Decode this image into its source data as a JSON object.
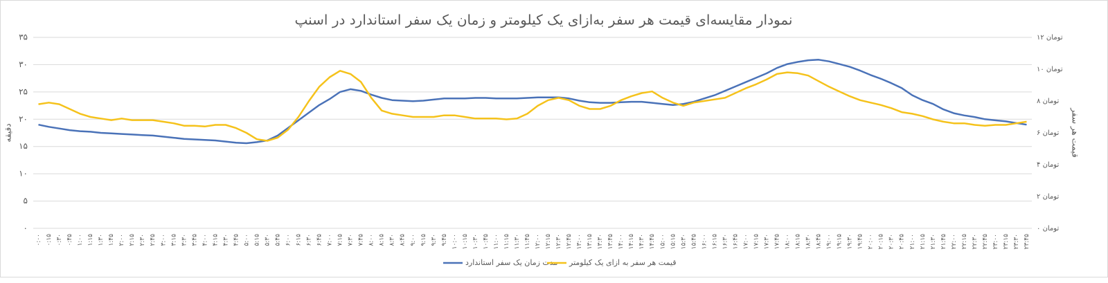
{
  "chart_data": {
    "type": "line",
    "title": "نمودار مقایسه‌ای قیمت هر سفر به‌ازای یک کیلومتر و زمان یک سفر استاندارد در اسنپ",
    "ylabel": "دقیقه",
    "y2label": "قیمت هر سفر",
    "categories": [
      "۰:۰۰",
      "۰:۱۵",
      "۰:۳۰",
      "۰:۴۵",
      "۱:۰۰",
      "۱:۱۵",
      "۱:۳۰",
      "۱:۴۵",
      "۲:۰۰",
      "۲:۱۵",
      "۲:۳۰",
      "۲:۴۵",
      "۳:۰۰",
      "۳:۱۵",
      "۳:۳۰",
      "۳:۴۵",
      "۴:۰۰",
      "۴:۱۵",
      "۴:۳۰",
      "۴:۴۵",
      "۵:۰۰",
      "۵:۱۵",
      "۵:۳۰",
      "۵:۴۵",
      "۶:۰۰",
      "۶:۱۵",
      "۶:۳۰",
      "۶:۴۵",
      "۷:۰۰",
      "۷:۱۵",
      "۷:۳۰",
      "۷:۴۵",
      "۸:۰۰",
      "۸:۱۵",
      "۸:۳۰",
      "۸:۴۵",
      "۹:۰۰",
      "۹:۱۵",
      "۹:۳۰",
      "۹:۴۵",
      "۱۰:۰۰",
      "۱۰:۱۵",
      "۱۰:۳۰",
      "۱۰:۴۵",
      "۱۱:۰۰",
      "۱۱:۱۵",
      "۱۱:۳۰",
      "۱۱:۴۵",
      "۱۲:۰۰",
      "۱۲:۱۵",
      "۱۲:۳۰",
      "۱۲:۴۵",
      "۱۳:۰۰",
      "۱۳:۱۵",
      "۱۳:۳۰",
      "۱۳:۴۵",
      "۱۴:۰۰",
      "۱۴:۱۵",
      "۱۴:۳۰",
      "۱۴:۴۵",
      "۱۵:۰۰",
      "۱۵:۱۵",
      "۱۵:۳۰",
      "۱۵:۴۵",
      "۱۶:۰۰",
      "۱۶:۱۵",
      "۱۶:۳۰",
      "۱۶:۴۵",
      "۱۷:۰۰",
      "۱۷:۱۵",
      "۱۷:۳۰",
      "۱۷:۴۵",
      "۱۸:۰۰",
      "۱۸:۱۵",
      "۱۸:۳۰",
      "۱۸:۴۵",
      "۱۹:۰۰",
      "۱۹:۱۵",
      "۱۹:۳۰",
      "۱۹:۴۵",
      "۲۰:۰۰",
      "۲۰:۱۵",
      "۲۰:۳۰",
      "۲۰:۴۵",
      "۲۱:۰۰",
      "۲۱:۱۵",
      "۲۱:۳۰",
      "۲۱:۴۵",
      "۲۲:۰۰",
      "۲۲:۱۵",
      "۲۲:۳۰",
      "۲۲:۴۵",
      "۲۳:۰۰",
      "۲۳:۱۵",
      "۲۳:۳۰",
      "۲۳:۴۵"
    ],
    "series": [
      {
        "name": "مدت زمان یک سفر استاندارد",
        "color": "#4a72b8",
        "values": [
          19.0,
          18.6,
          18.3,
          18.0,
          17.8,
          17.7,
          17.5,
          17.4,
          17.3,
          17.2,
          17.1,
          17.0,
          16.8,
          16.6,
          16.4,
          16.3,
          16.2,
          16.1,
          15.9,
          15.7,
          15.6,
          15.8,
          16.1,
          17.0,
          18.4,
          19.8,
          21.2,
          22.6,
          23.7,
          25.0,
          25.5,
          25.2,
          24.5,
          23.9,
          23.5,
          23.4,
          23.3,
          23.4,
          23.6,
          23.8,
          23.8,
          23.8,
          23.9,
          23.9,
          23.8,
          23.8,
          23.8,
          23.9,
          24.0,
          24.0,
          24.0,
          23.8,
          23.4,
          23.1,
          23.0,
          23.0,
          23.1,
          23.2,
          23.2,
          23.0,
          22.8,
          22.6,
          22.8,
          23.2,
          23.8,
          24.4,
          25.2,
          26.0,
          26.8,
          27.6,
          28.4,
          29.4,
          30.1,
          30.5,
          30.8,
          30.9,
          30.6,
          30.1,
          29.6,
          28.9,
          28.1,
          27.4,
          26.6,
          25.7,
          24.4,
          23.5,
          22.8,
          21.8,
          21.1,
          20.7,
          20.4,
          20.0,
          19.8,
          19.6,
          19.3,
          19.0
        ]
      },
      {
        "name": "قیمت هر سفر به ازای یک کیلومتر",
        "color": "#f5c21b",
        "axis": "y2",
        "values": [
          7.8,
          7.9,
          7.8,
          7.5,
          7.2,
          7.0,
          6.9,
          6.8,
          6.9,
          6.8,
          6.8,
          6.8,
          6.7,
          6.6,
          6.45,
          6.45,
          6.4,
          6.5,
          6.5,
          6.3,
          6.0,
          5.6,
          5.5,
          5.7,
          6.2,
          7.0,
          8.0,
          8.9,
          9.5,
          9.9,
          9.7,
          9.2,
          8.2,
          7.4,
          7.2,
          7.1,
          7.0,
          7.0,
          7.0,
          7.1,
          7.1,
          7.0,
          6.9,
          6.9,
          6.9,
          6.85,
          6.9,
          7.2,
          7.7,
          8.05,
          8.2,
          8.05,
          7.7,
          7.5,
          7.5,
          7.7,
          8.05,
          8.3,
          8.5,
          8.6,
          8.2,
          7.9,
          7.7,
          7.9,
          8.0,
          8.1,
          8.2,
          8.5,
          8.8,
          9.05,
          9.35,
          9.7,
          9.8,
          9.75,
          9.6,
          9.25,
          8.9,
          8.6,
          8.3,
          8.05,
          7.9,
          7.75,
          7.55,
          7.3,
          7.2,
          7.05,
          6.85,
          6.7,
          6.6,
          6.6,
          6.5,
          6.45,
          6.5,
          6.5,
          6.6,
          6.7
        ]
      }
    ],
    "ylim": [
      0,
      35
    ],
    "yticks": [
      {
        "value": 0,
        "label": "۰"
      },
      {
        "value": 5,
        "label": "۵"
      },
      {
        "value": 10,
        "label": "۱۰"
      },
      {
        "value": 15,
        "label": "۱۵"
      },
      {
        "value": 20,
        "label": "۲۰"
      },
      {
        "value": 25,
        "label": "۲۵"
      },
      {
        "value": 30,
        "label": "۳۰"
      },
      {
        "value": 35,
        "label": "۳۵"
      }
    ],
    "y2lim": [
      0,
      12
    ],
    "y2ticks": [
      {
        "value": 0,
        "label": "۰ تومان"
      },
      {
        "value": 2,
        "label": "۲ تومان"
      },
      {
        "value": 4,
        "label": "۴ تومان"
      },
      {
        "value": 6,
        "label": "۶ تومان"
      },
      {
        "value": 8,
        "label": "۸ تومان"
      },
      {
        "value": 10,
        "label": "۱۰ تومان"
      },
      {
        "value": 12,
        "label": "۱۲ تومان"
      }
    ],
    "grid": true
  }
}
